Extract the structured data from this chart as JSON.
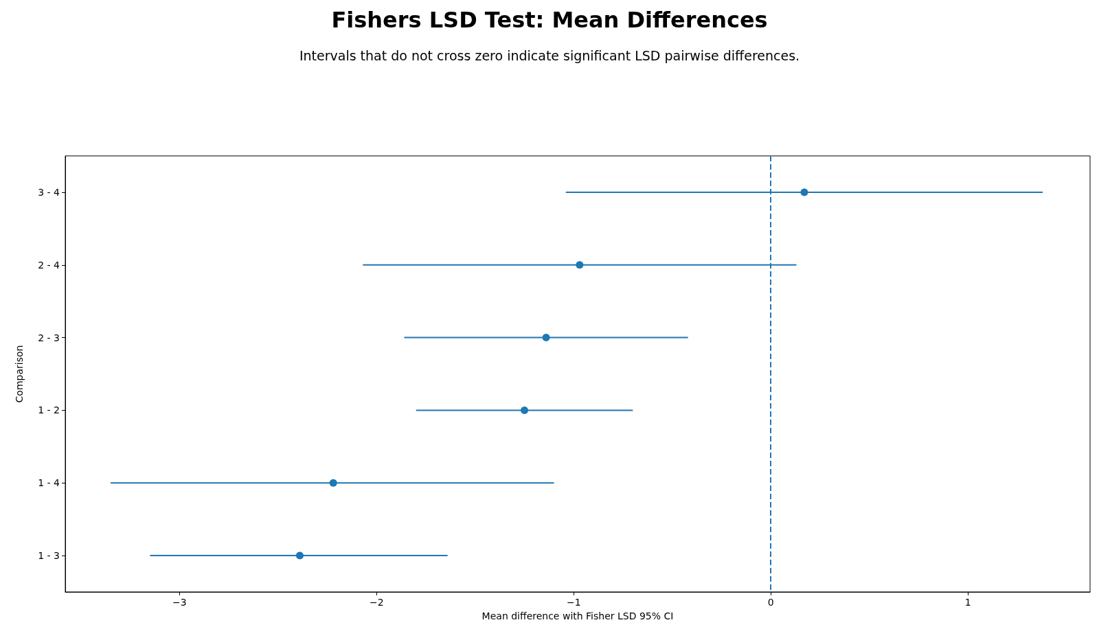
{
  "chart_data": {
    "type": "scatter",
    "title": "Fishers LSD Test: Mean Differences",
    "subtitle": "Intervals that do not cross zero indicate significant LSD pairwise differences.",
    "xlabel": "Mean difference with Fisher LSD 95% CI",
    "ylabel": "Comparison",
    "orientation": "horizontal",
    "categories": [
      "3 - 4",
      "2 - 4",
      "2 - 3",
      "1 - 2",
      "1 - 4",
      "1 - 3"
    ],
    "series": [
      {
        "color": "#1f77b4",
        "values": [
          0.17,
          -0.97,
          -1.14,
          -1.25,
          -2.22,
          -2.39
        ],
        "errors": [
          [
            -1.04,
            1.38
          ],
          [
            -2.07,
            0.13
          ],
          [
            -1.86,
            -0.42
          ],
          [
            -1.8,
            -0.7
          ],
          [
            -3.35,
            -1.1
          ],
          [
            -3.15,
            -1.64
          ]
        ]
      }
    ],
    "xlim": [
      -3.58,
      1.62
    ],
    "xticks": [
      {
        "value": -3,
        "label": "−3"
      },
      {
        "value": -2,
        "label": "−2"
      },
      {
        "value": -1,
        "label": "−1"
      },
      0,
      1
    ],
    "ref_lines": [
      {
        "axis": "x",
        "value": 0,
        "label": null,
        "color": "#1f77b4",
        "line_style": "dashed"
      }
    ],
    "grid": false,
    "marker": "circle"
  }
}
